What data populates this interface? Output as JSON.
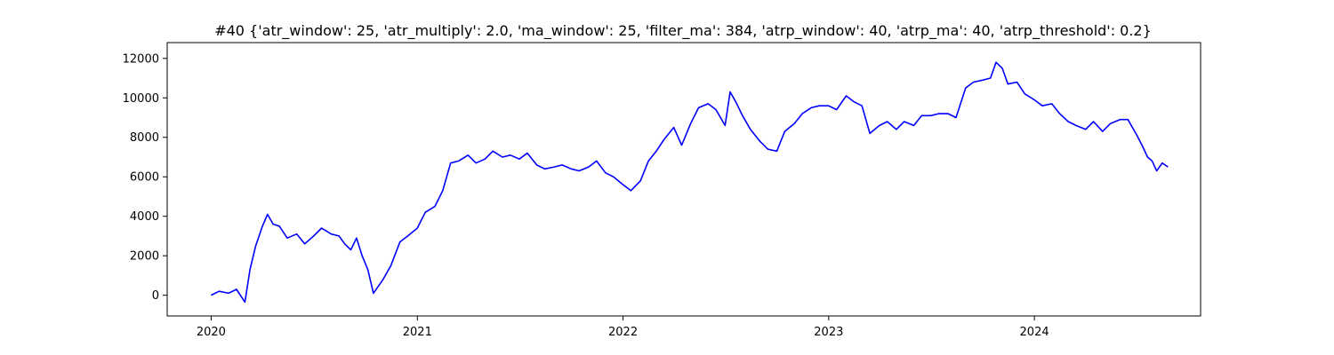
{
  "chart_data": {
    "type": "line",
    "title": "#40 {'atr_window': 25, 'atr_multiply': 2.0, 'ma_window': 25, 'filter_ma': 384, 'atrp_window': 40, 'atrp_ma': 40, 'atrp_threshold': 0.2}",
    "xlabel": "",
    "ylabel": "",
    "x_ticks": [
      "2020",
      "2021",
      "2022",
      "2023",
      "2024"
    ],
    "y_ticks": [
      "0",
      "2000",
      "4000",
      "6000",
      "8000",
      "10000",
      "12000"
    ],
    "xlim": [
      "2019-10-15",
      "2024-10-22"
    ],
    "ylim": [
      -1050,
      12800
    ],
    "grid": false,
    "legend": "none",
    "series": [
      {
        "color": "#0000ff",
        "x": [
          "2020-01-01",
          "2020-01-15",
          "2020-02-01",
          "2020-02-15",
          "2020-03-01",
          "2020-03-10",
          "2020-03-20",
          "2020-04-01",
          "2020-04-10",
          "2020-04-20",
          "2020-05-01",
          "2020-05-15",
          "2020-06-01",
          "2020-06-15",
          "2020-07-01",
          "2020-07-15",
          "2020-08-01",
          "2020-08-15",
          "2020-08-25",
          "2020-09-05",
          "2020-09-15",
          "2020-09-25",
          "2020-10-05",
          "2020-10-15",
          "2020-11-01",
          "2020-11-15",
          "2020-12-01",
          "2020-12-15",
          "2021-01-01",
          "2021-01-15",
          "2021-02-01",
          "2021-02-15",
          "2021-03-01",
          "2021-03-15",
          "2021-04-01",
          "2021-04-15",
          "2021-05-01",
          "2021-05-15",
          "2021-06-01",
          "2021-06-15",
          "2021-07-01",
          "2021-07-15",
          "2021-08-01",
          "2021-08-15",
          "2021-09-01",
          "2021-09-15",
          "2021-10-01",
          "2021-10-15",
          "2021-11-01",
          "2021-11-15",
          "2021-12-01",
          "2021-12-15",
          "2022-01-01",
          "2022-01-15",
          "2022-02-01",
          "2022-02-15",
          "2022-03-01",
          "2022-03-15",
          "2022-04-01",
          "2022-04-15",
          "2022-05-01",
          "2022-05-15",
          "2022-06-01",
          "2022-06-15",
          "2022-07-01",
          "2022-07-10",
          "2022-07-20",
          "2022-08-01",
          "2022-08-15",
          "2022-09-01",
          "2022-09-15",
          "2022-10-01",
          "2022-10-15",
          "2022-11-01",
          "2022-11-15",
          "2022-12-01",
          "2022-12-15",
          "2023-01-01",
          "2023-01-15",
          "2023-02-01",
          "2023-02-15",
          "2023-03-01",
          "2023-03-15",
          "2023-04-01",
          "2023-04-15",
          "2023-05-01",
          "2023-05-15",
          "2023-06-01",
          "2023-06-15",
          "2023-07-01",
          "2023-07-15",
          "2023-08-01",
          "2023-08-15",
          "2023-09-01",
          "2023-09-15",
          "2023-10-01",
          "2023-10-15",
          "2023-10-25",
          "2023-11-05",
          "2023-11-15",
          "2023-12-01",
          "2023-12-15",
          "2024-01-01",
          "2024-01-15",
          "2024-02-01",
          "2024-02-15",
          "2024-03-01",
          "2024-03-15",
          "2024-04-01",
          "2024-04-15",
          "2024-05-01",
          "2024-05-15",
          "2024-06-01",
          "2024-06-15",
          "2024-07-01",
          "2024-07-10",
          "2024-07-20",
          "2024-07-28",
          "2024-08-05",
          "2024-08-15",
          "2024-08-25"
        ],
        "y": [
          0,
          200,
          100,
          300,
          -350,
          1300,
          2500,
          3500,
          4100,
          3600,
          3500,
          2900,
          3100,
          2600,
          3000,
          3400,
          3100,
          3000,
          2600,
          2300,
          2900,
          2000,
          1300,
          100,
          800,
          1500,
          2700,
          3000,
          3400,
          4200,
          4500,
          5300,
          6700,
          6800,
          7100,
          6700,
          6900,
          7300,
          7000,
          7100,
          6900,
          7200,
          6600,
          6400,
          6500,
          6600,
          6400,
          6300,
          6500,
          6800,
          6200,
          6000,
          5600,
          5300,
          5800,
          6800,
          7300,
          7900,
          8500,
          7600,
          8700,
          9500,
          9700,
          9400,
          8600,
          10300,
          9800,
          9100,
          8400,
          7800,
          7400,
          7300,
          8300,
          8700,
          9200,
          9500,
          9600,
          9600,
          9400,
          10100,
          9800,
          9600,
          8200,
          8600,
          8800,
          8400,
          8800,
          8600,
          9100,
          9100,
          9200,
          9200,
          9000,
          10500,
          10800,
          10900,
          11000,
          11800,
          11500,
          10700,
          10800,
          10200,
          9900,
          9600,
          9700,
          9200,
          8800,
          8600,
          8400,
          8800,
          8300,
          8700,
          8900,
          8900,
          8100,
          7600,
          7000,
          6800,
          6300,
          6700,
          6500
        ]
      }
    ]
  }
}
